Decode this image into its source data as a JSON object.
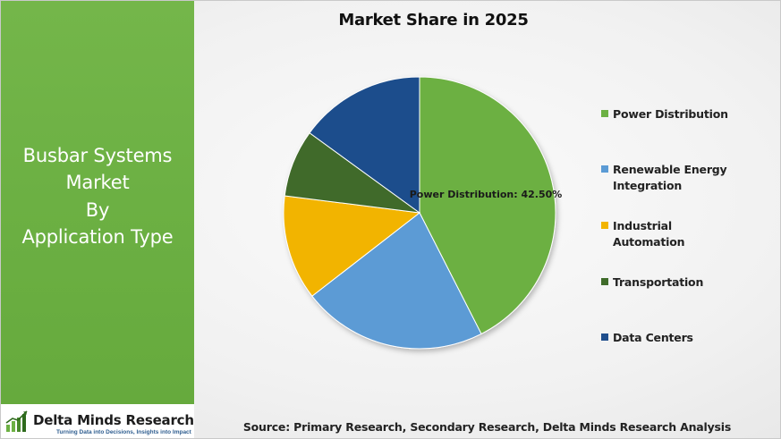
{
  "sidebar": {
    "title_lines": [
      "Busbar Systems",
      "Market",
      "By",
      "Application Type"
    ]
  },
  "logo": {
    "name": "Delta Minds Research",
    "tagline": "Turning Data into Decisions, Insights into Impact",
    "icon": "bar-chart-icon"
  },
  "source_text": "Source: Primary Research, Secondary Research, Delta Minds Research Analysis",
  "chart_data": {
    "type": "pie",
    "title": "Market Share in 2025",
    "legend_position": "right",
    "slices": [
      {
        "label": "Power Distribution",
        "value": 42.5,
        "color": "#6cb043"
      },
      {
        "label": "Renewable Energy Integration",
        "value": 22.0,
        "color": "#5b9bd5"
      },
      {
        "label": "Industrial Automation",
        "value": 12.5,
        "color": "#f2b400"
      },
      {
        "label": "Transportation",
        "value": 8.0,
        "color": "#3f6b2a"
      },
      {
        "label": "Data Centers",
        "value": 15.0,
        "color": "#1f4e8c"
      }
    ],
    "data_labels": [
      {
        "slice": "Power Distribution",
        "text": "Power Distribution: 42.50%"
      }
    ]
  }
}
